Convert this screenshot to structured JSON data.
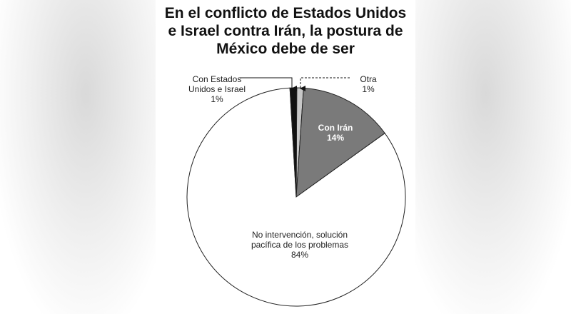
{
  "chart_data": {
    "type": "pie",
    "title": [
      "En el conflicto de Estados Unidos",
      "e Israel contra Irán, la postura de",
      "México debe de ser"
    ],
    "slices": [
      {
        "label": [
          "Otra"
        ],
        "value_label": "1%",
        "value": 1,
        "color": "#c8c8c8"
      },
      {
        "label": [
          "Con Irán"
        ],
        "value_label": "14%",
        "value": 14,
        "color": "#7a7a7a"
      },
      {
        "label": [
          "No intervención, solución",
          "pacífica de los problemas"
        ],
        "value_label": "84%",
        "value": 84,
        "color": "#ffffff"
      },
      {
        "label": [
          "Con Estados",
          "Unidos e Israel"
        ],
        "value_label": "1%",
        "value": 1,
        "color": "#111111"
      }
    ]
  }
}
